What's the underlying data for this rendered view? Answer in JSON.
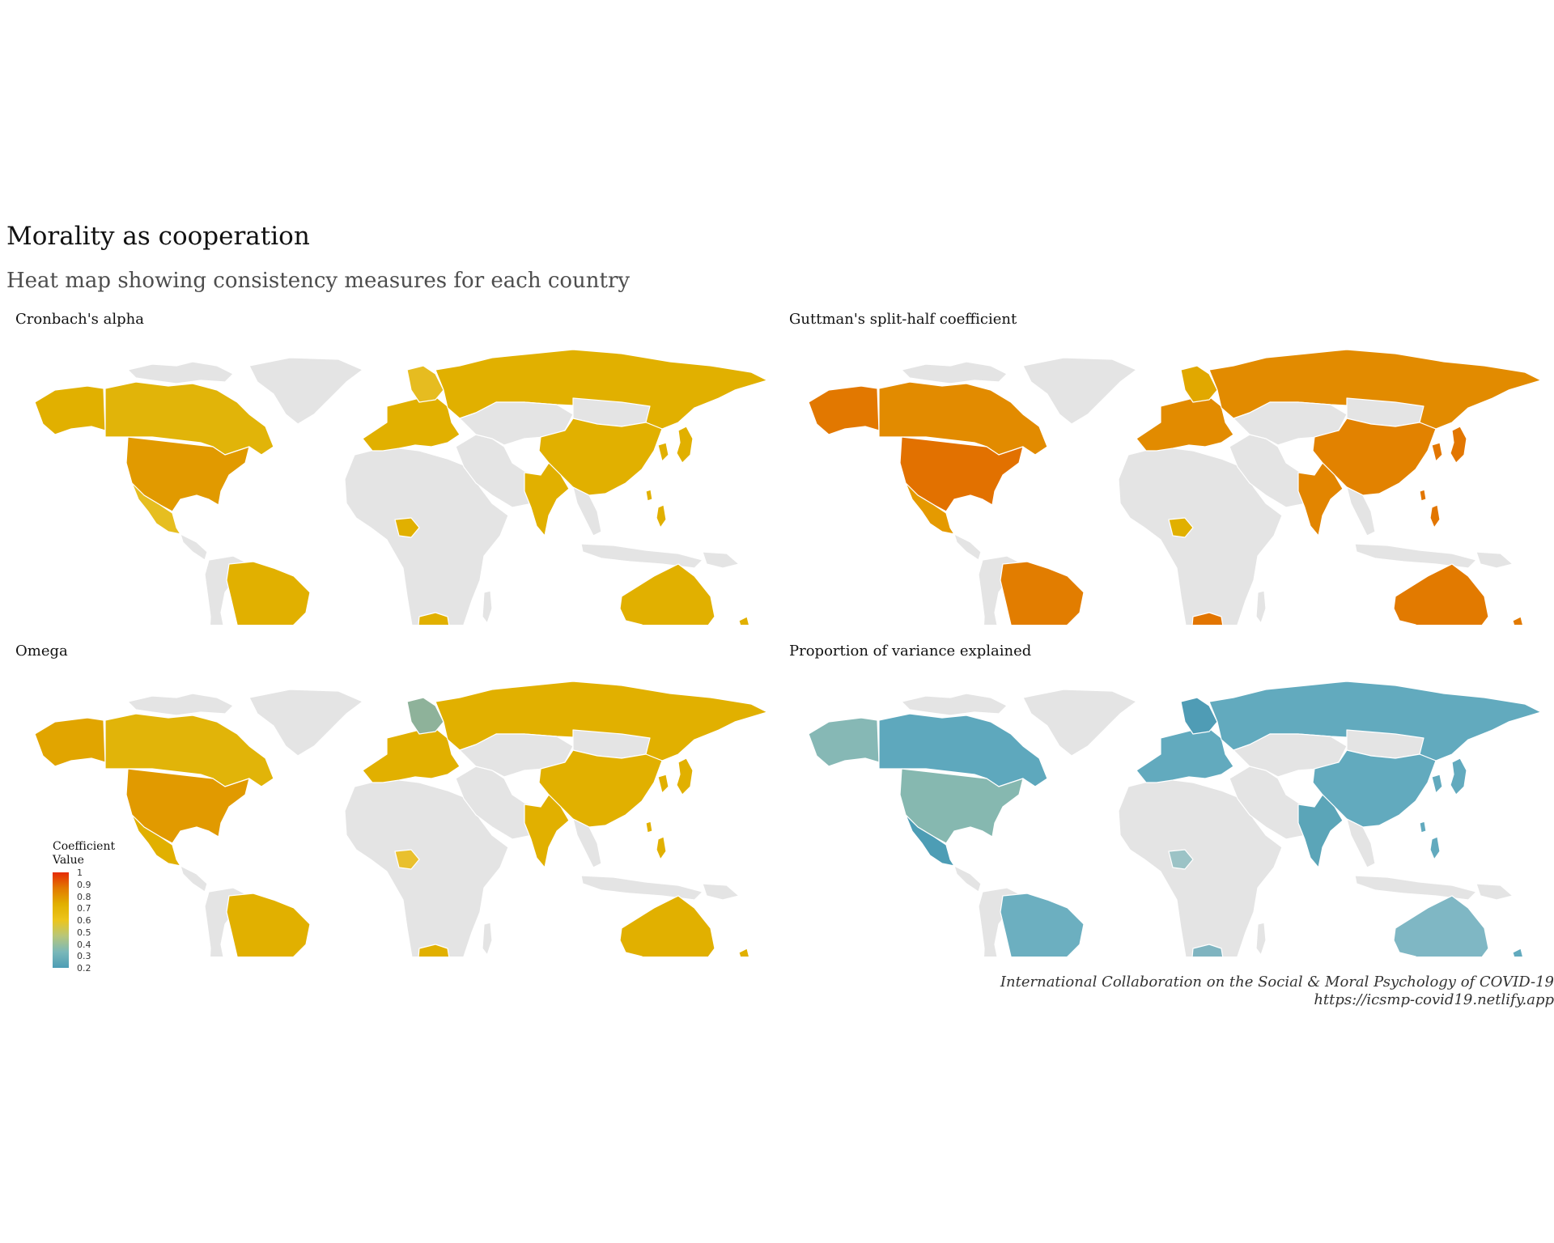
{
  "title": "Morality as cooperation",
  "subtitle": "Heat map showing consistency measures for each country",
  "panels": [
    {
      "title": "Cronbach's alpha",
      "colors": {
        "canada": "#e1b409",
        "alaska": "#e1b000",
        "usa": "#e19a00",
        "mexico": "#e6be20",
        "southamerica": "#e1b000",
        "argentina": "#ebc63a",
        "europe": "#e1b000",
        "russia": "#e1b000",
        "china": "#e1b000",
        "india": "#e1b000",
        "nigeria": "#e1b000",
        "southafrica": "#e1b000",
        "australia": "#e1b000",
        "japan": "#e1b000",
        "nz": "#e1b000",
        "nordic": "#e6bc20"
      }
    },
    {
      "title": "Guttman's split-half coefficient",
      "colors": {
        "canada": "#e28b00",
        "alaska": "#e27800",
        "usa": "#e27100",
        "mexico": "#e59a00",
        "southamerica": "#e27d00",
        "argentina": "#e29000",
        "europe": "#e28b00",
        "russia": "#e28b00",
        "china": "#e28200",
        "india": "#e28500",
        "nigeria": "#e1b000",
        "southafrica": "#e27500",
        "australia": "#e27a00",
        "japan": "#e27600",
        "nz": "#e27a00",
        "nordic": "#e1a800"
      }
    },
    {
      "title": "Omega",
      "colors": {
        "canada": "#e1b409",
        "alaska": "#e1a500",
        "usa": "#e19a00",
        "mexico": "#e1b000",
        "southamerica": "#e1b000",
        "argentina": "#e1b409",
        "europe": "#e1b000",
        "russia": "#e1b000",
        "china": "#e1b000",
        "india": "#e1b000",
        "nigeria": "#e9c02e",
        "southafrica": "#e1b000",
        "australia": "#e1b000",
        "japan": "#e1b000",
        "nz": "#e1b000",
        "nordic": "#8eb29a"
      }
    },
    {
      "title": "Proportion of variance explained",
      "colors": {
        "canada": "#5ea8bd",
        "alaska": "#86b8b5",
        "usa": "#86b8b0",
        "mexico": "#4d9db5",
        "southamerica": "#6cafc0",
        "argentina": "#5ba5b8",
        "europe": "#62aabe",
        "russia": "#62aabe",
        "china": "#62aabe",
        "india": "#5ba5b8",
        "nigeria": "#9cc3c6",
        "southafrica": "#7fb4c0",
        "australia": "#7fb7c4",
        "japan": "#62aabe",
        "nz": "#62aabe",
        "nordic": "#4f9cb5"
      }
    }
  ],
  "legend": {
    "title_line1": "Coefficient",
    "title_line2": "Value",
    "ticks": [
      "1",
      "0.9",
      "0.8",
      "0.7",
      "0.6",
      "0.5",
      "0.4",
      "0.3",
      "0.2"
    ],
    "range": [
      0.2,
      1
    ],
    "gradient": [
      "#e52b05",
      "#e27a00",
      "#e1b000",
      "#ecc51c",
      "#b7c67a",
      "#7ab8b9",
      "#4d9db5"
    ]
  },
  "no_data_color": "#e4e4e4",
  "caption": {
    "line1": "International Collaboration on the Social & Moral Psychology of COVID-19",
    "line2": "https://icsmp-covid19.netlify.app"
  }
}
